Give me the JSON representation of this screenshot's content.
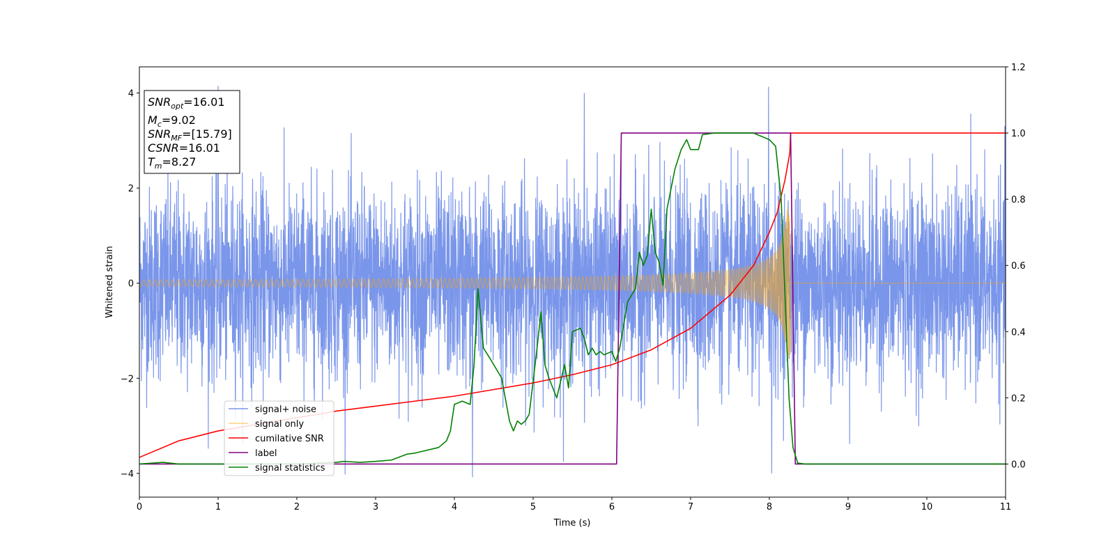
{
  "chart_data": {
    "type": "line",
    "xlabel": "Time (s)",
    "ylabel_left": "Whitened strain",
    "ylabel_right": "",
    "xlim": [
      0,
      11
    ],
    "ylim_left": [
      -4.5,
      4.55
    ],
    "ylim_right": [
      -0.1,
      1.2
    ],
    "x_ticks": [
      0,
      1,
      2,
      3,
      4,
      5,
      6,
      7,
      8,
      9,
      10,
      11
    ],
    "y_ticks_left": [
      -4,
      -2,
      0,
      2,
      4
    ],
    "y_ticks_right": [
      0.0,
      0.2,
      0.4,
      0.6,
      0.8,
      1.0,
      1.2
    ],
    "y_tick_labels_right": [
      "0.0",
      "0.2",
      "0.4",
      "0.6",
      "0.8",
      "1.0",
      "1.2"
    ],
    "grid": false,
    "legend_position": "lower-left",
    "annotation": {
      "lines": [
        {
          "base": "SNR",
          "sub": "opt",
          "value": "=16.01"
        },
        {
          "base": "M",
          "sub": "c",
          "value": "=9.02"
        },
        {
          "base": "SNR",
          "sub": "MF",
          "value": "=[15.79]"
        },
        {
          "base": "CSNR",
          "sub": "",
          "value": "=16.01"
        },
        {
          "base": "T",
          "sub": "m",
          "value": "=8.27"
        }
      ]
    },
    "series": [
      {
        "name": "signal+ noise",
        "axis": "left",
        "color": "#4169e1",
        "style": "noise",
        "x_range": [
          0,
          11
        ],
        "envelope_min": [
          -4.08,
          -4.0
        ],
        "envelope_max": [
          4.15,
          4.13
        ],
        "typical_amplitude": 1.0,
        "notable_extrema": [
          {
            "x": 1.0,
            "y": 4.15
          },
          {
            "x": 4.23,
            "y": -4.08
          },
          {
            "x": 5.65,
            "y": 4.0
          },
          {
            "x": 7.99,
            "y": 4.13
          },
          {
            "x": 8.03,
            "y": -4.0
          }
        ]
      },
      {
        "name": "signal only",
        "axis": "left",
        "color": "#ffa500",
        "style": "chirp",
        "chirp_start": 0,
        "merger_time": 8.27,
        "amplitude_start": 0.07,
        "amplitude_merger": 1.6,
        "after_merger": 0
      },
      {
        "name": "cumilative SNR",
        "axis": "right",
        "color": "#ff0000",
        "x": [
          0,
          0.5,
          1,
          1.5,
          2,
          2.5,
          3,
          3.5,
          4,
          4.5,
          5,
          5.5,
          6,
          6.5,
          7,
          7.5,
          7.8,
          8.0,
          8.1,
          8.2,
          8.26,
          8.27,
          11
        ],
        "y": [
          0.02,
          0.07,
          0.1,
          0.12,
          0.14,
          0.16,
          0.175,
          0.19,
          0.205,
          0.225,
          0.245,
          0.27,
          0.3,
          0.345,
          0.41,
          0.51,
          0.6,
          0.7,
          0.76,
          0.86,
          0.94,
          1.0,
          1.0
        ]
      },
      {
        "name": "label",
        "axis": "right",
        "color": "#800080",
        "x": [
          0,
          6.06,
          6.12,
          8.27,
          8.33,
          11
        ],
        "y": [
          0,
          0,
          1,
          1,
          0,
          0
        ]
      },
      {
        "name": "signal statistics",
        "axis": "right",
        "color": "#008000",
        "x": [
          0,
          0.3,
          0.5,
          1,
          1.5,
          2,
          2.5,
          2.6,
          2.8,
          3,
          3.2,
          3.4,
          3.5,
          3.8,
          3.9,
          3.95,
          4.0,
          4.1,
          4.2,
          4.25,
          4.3,
          4.37,
          4.45,
          4.55,
          4.6,
          4.7,
          4.75,
          4.8,
          4.85,
          4.9,
          4.95,
          5.05,
          5.1,
          5.15,
          5.2,
          5.3,
          5.4,
          5.45,
          5.5,
          5.6,
          5.65,
          5.7,
          5.75,
          5.8,
          5.85,
          5.9,
          6.0,
          6.05,
          6.1,
          6.2,
          6.3,
          6.35,
          6.4,
          6.45,
          6.5,
          6.55,
          6.6,
          6.65,
          6.7,
          6.8,
          6.88,
          6.95,
          7.0,
          7.1,
          7.15,
          7.3,
          7.5,
          7.8,
          8.0,
          8.08,
          8.15,
          8.2,
          8.25,
          8.3,
          8.36,
          8.45,
          11
        ],
        "y": [
          0.0,
          0.005,
          0.0,
          0.0,
          0.0,
          0.0,
          0.005,
          0.008,
          0.005,
          0.008,
          0.012,
          0.03,
          0.033,
          0.05,
          0.07,
          0.1,
          0.18,
          0.19,
          0.18,
          0.3,
          0.53,
          0.35,
          0.32,
          0.28,
          0.26,
          0.13,
          0.1,
          0.13,
          0.12,
          0.13,
          0.15,
          0.35,
          0.46,
          0.3,
          0.26,
          0.2,
          0.3,
          0.23,
          0.4,
          0.41,
          0.38,
          0.33,
          0.35,
          0.33,
          0.34,
          0.33,
          0.34,
          0.31,
          0.35,
          0.49,
          0.53,
          0.64,
          0.6,
          0.63,
          0.77,
          0.64,
          0.61,
          0.54,
          0.77,
          0.89,
          0.95,
          0.98,
          0.95,
          0.95,
          0.995,
          1.0,
          1.0,
          1.0,
          0.98,
          0.96,
          0.8,
          0.5,
          0.2,
          0.05,
          0.003,
          0.0,
          0.0
        ]
      }
    ]
  }
}
